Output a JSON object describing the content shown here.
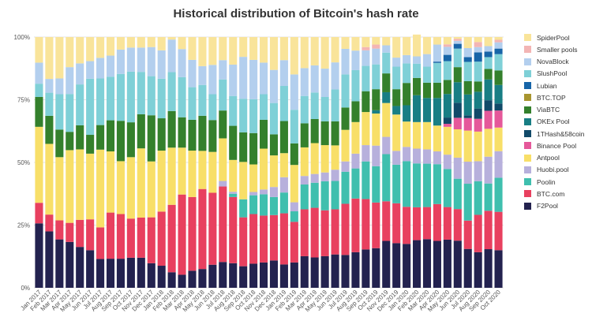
{
  "chart_data": {
    "type": "bar",
    "stacked": true,
    "title": "Historical distribution of Bitcoin's hash rate",
    "xlabel": "",
    "ylabel": "",
    "ylim": [
      0,
      100
    ],
    "y_ticks": [
      "0%",
      "25%",
      "50%",
      "75%",
      "100%"
    ],
    "grid": true,
    "legend_position": "right",
    "categories": [
      "Jan 2017",
      "Feb 2017",
      "Mar 2017",
      "Apr 2017",
      "May 2017",
      "Jun 2017",
      "Jul 2017",
      "Aug 2017",
      "Sep 2017",
      "Oct 2017",
      "Nov 2017",
      "Dec 2017",
      "Jan 2018",
      "Feb 2018",
      "Mar 2018",
      "Apr 2018",
      "May 2018",
      "Jun 2018",
      "Jul 2018",
      "Aug 2018",
      "Sep 2018",
      "Oct 2018",
      "Nov 2018",
      "Dec 2018",
      "Jan 2019",
      "Feb 2019",
      "Mar 2019",
      "Apr 2019",
      "May 2019",
      "Jun 2019",
      "Jul 2019",
      "Aug 2019",
      "Sep 2019",
      "Oct 2019",
      "Nov 2019",
      "Dec 2019",
      "Jan 2020",
      "Feb 2020",
      "Mar 2020",
      "Apr 2020",
      "May 2020",
      "Jun 2020",
      "Jul 2020",
      "Aug 2020",
      "Sep 2020",
      "Oct 2020"
    ],
    "bar_groups": [
      {
        "period": "Jan 2017",
        "values": [
          25.7,
          8.2,
          0,
          0,
          30.3,
          0,
          0,
          0,
          11.9,
          0,
          5.3,
          0,
          8.4,
          0,
          10.2
        ]
      },
      {
        "period": "Feb 2017",
        "values": [
          22.5,
          6.7,
          0,
          0,
          28.2,
          0,
          0,
          0,
          11.2,
          0,
          9.2,
          0,
          5.5,
          0,
          16.7
        ]
      },
      {
        "period": "Mar 2017",
        "values": [
          19.3,
          7.6,
          0,
          0,
          25.2,
          0,
          0,
          0,
          11.0,
          0,
          14.1,
          0,
          6.3,
          0,
          16.5
        ]
      },
      {
        "period": "Apr 2017",
        "values": [
          18.3,
          7.6,
          0,
          0,
          29.0,
          0,
          0,
          0,
          7.3,
          0,
          15.1,
          0,
          10.7,
          0,
          12.0
        ]
      },
      {
        "period": "May 2017",
        "values": [
          16.3,
          10.8,
          0,
          0,
          28.1,
          0,
          0,
          0,
          9.6,
          0,
          16.3,
          0,
          8.4,
          0,
          10.5
        ]
      },
      {
        "period": "Jun 2017",
        "values": [
          15.0,
          12.3,
          0,
          0,
          26.2,
          0,
          0,
          0,
          7.5,
          0,
          22.4,
          0,
          7.0,
          0,
          9.6
        ]
      },
      {
        "period": "Jul 2017",
        "values": [
          11.5,
          12.6,
          0,
          0,
          31.0,
          0,
          0,
          0,
          9.8,
          0,
          18.6,
          0,
          8.2,
          0,
          8.3
        ]
      },
      {
        "period": "Aug 2017",
        "values": [
          11.6,
          18.4,
          0,
          0,
          24.4,
          0,
          0,
          0,
          12.4,
          0,
          17.4,
          0,
          8.4,
          0,
          7.4
        ]
      },
      {
        "period": "Sep 2017",
        "values": [
          11.6,
          17.8,
          0,
          0,
          21.1,
          0,
          0,
          0,
          16.1,
          0,
          18.7,
          0,
          9.7,
          0,
          5.0
        ]
      },
      {
        "period": "Oct 2017",
        "values": [
          12.0,
          15.6,
          0,
          0,
          24.5,
          0,
          0,
          0,
          13.9,
          0,
          20.2,
          0,
          9.6,
          0,
          4.2
        ]
      },
      {
        "period": "Nov 2017",
        "values": [
          12.0,
          16.0,
          0,
          0,
          27.6,
          0,
          0,
          0,
          13.6,
          0,
          16.9,
          0,
          9.7,
          0,
          4.2
        ]
      },
      {
        "period": "Dec 2017",
        "values": [
          9.8,
          18.3,
          0,
          0,
          22.3,
          0,
          0,
          0,
          18.4,
          0,
          15.6,
          0,
          11.6,
          0,
          4.0
        ]
      },
      {
        "period": "Jan 2018",
        "values": [
          8.8,
          21.6,
          0,
          0,
          24.3,
          0,
          0,
          0,
          12.9,
          0,
          15.8,
          0,
          11.3,
          0,
          5.3
        ]
      },
      {
        "period": "Feb 2018",
        "values": [
          6.2,
          26.9,
          0,
          0,
          22.8,
          0,
          0,
          0,
          14.6,
          0,
          15.5,
          0,
          13.0,
          0,
          1.0
        ]
      },
      {
        "period": "Mar 2018",
        "values": [
          5.2,
          32.0,
          0,
          0,
          18.7,
          0,
          0,
          0,
          12.1,
          0,
          16.0,
          0,
          11.2,
          0,
          4.8
        ]
      },
      {
        "period": "Apr 2018",
        "values": [
          6.8,
          29.4,
          0,
          0,
          18.5,
          0,
          0,
          0,
          12.3,
          0,
          13.0,
          0,
          10.9,
          0,
          9.1
        ]
      },
      {
        "period": "May 2018",
        "values": [
          7.5,
          31.9,
          0,
          0,
          15.2,
          0,
          0,
          0,
          14.0,
          0,
          12.3,
          0,
          7.5,
          0,
          11.6
        ]
      },
      {
        "period": "Jun 2018",
        "values": [
          9.2,
          28.7,
          0,
          0,
          16.3,
          0,
          0,
          0,
          12.7,
          0,
          10.3,
          0,
          11.7,
          0,
          11.1
        ]
      },
      {
        "period": "Jul 2018",
        "values": [
          10.3,
          30.1,
          0,
          2.2,
          17.0,
          0,
          0,
          0,
          11.1,
          0,
          12.4,
          0,
          7.7,
          0,
          9.2
        ]
      },
      {
        "period": "Aug 2018",
        "values": [
          9.8,
          26.4,
          1.3,
          0.8,
          12.7,
          0,
          0,
          0,
          13.6,
          0,
          11.9,
          0,
          12.5,
          0,
          11.0
        ]
      },
      {
        "period": "Sep 2018",
        "values": [
          8.6,
          19.5,
          7.2,
          0,
          14.9,
          0,
          0,
          0,
          11.8,
          0,
          13.4,
          0,
          16.7,
          0,
          7.9
        ]
      },
      {
        "period": "Oct 2018",
        "values": [
          9.6,
          19.8,
          7.5,
          1.3,
          11.0,
          0,
          0,
          0,
          12.5,
          0,
          13.5,
          0,
          15.7,
          0,
          9.1
        ]
      },
      {
        "period": "Nov 2018",
        "values": [
          10.1,
          18.7,
          8.5,
          1.9,
          16.3,
          0,
          0,
          0,
          11.5,
          0,
          10.2,
          0,
          12.6,
          0,
          10.2
        ]
      },
      {
        "period": "Dec 2018",
        "values": [
          10.9,
          18.1,
          7.2,
          4.0,
          12.6,
          0,
          0,
          0,
          8.4,
          0,
          12.5,
          0,
          13.2,
          0,
          13.1
        ]
      },
      {
        "period": "Jan 2019",
        "values": [
          9.3,
          20.4,
          8.3,
          6.1,
          9.6,
          0,
          0,
          0,
          12.8,
          0,
          14.0,
          0,
          10.3,
          0,
          9.2
        ]
      },
      {
        "period": "Feb 2019",
        "values": [
          10.1,
          16.2,
          4.2,
          3.6,
          14.9,
          0,
          0,
          0,
          8.6,
          0,
          13.4,
          0,
          14.1,
          0,
          14.9
        ]
      },
      {
        "period": "Mar 2019",
        "values": [
          12.6,
          18.7,
          9.9,
          3.4,
          11.4,
          0,
          0,
          0,
          9.6,
          0,
          10.9,
          0,
          11.1,
          0,
          12.4
        ]
      },
      {
        "period": "Apr 2019",
        "values": [
          12.1,
          19.8,
          10.0,
          3.5,
          12.3,
          0,
          0,
          0,
          9.6,
          0,
          10.6,
          0,
          10.8,
          0,
          11.3
        ]
      },
      {
        "period": "May 2019",
        "values": [
          12.6,
          18.3,
          11.6,
          3.5,
          10.9,
          0,
          0,
          0,
          9.5,
          0,
          9.7,
          0,
          11.3,
          0,
          12.6
        ]
      },
      {
        "period": "Jun 2019",
        "values": [
          13.3,
          18.0,
          11.3,
          4.5,
          9.7,
          0,
          0,
          0,
          9.6,
          0,
          12.7,
          0,
          10.8,
          0,
          10.1
        ]
      },
      {
        "period": "Jul 2019",
        "values": [
          13.1,
          20.4,
          12.8,
          4.1,
          12.6,
          0,
          0,
          0,
          8.9,
          0,
          13.2,
          0,
          10.2,
          0,
          4.7
        ]
      },
      {
        "period": "Aug 2019",
        "values": [
          14.2,
          21.4,
          12.0,
          5.9,
          12.6,
          0,
          0,
          0,
          8.3,
          0,
          12.4,
          0,
          7.8,
          0,
          5.4
        ]
      },
      {
        "period": "Sep 2019",
        "values": [
          15.3,
          20.1,
          15.0,
          6.5,
          13.2,
          0,
          0,
          0,
          8.3,
          0,
          10.1,
          0,
          6.2,
          1.3,
          4.0
        ]
      },
      {
        "period": "Oct 2019",
        "values": [
          15.8,
          18.2,
          14.5,
          8.2,
          12.8,
          0,
          0,
          1.3,
          8.4,
          0,
          9.9,
          0,
          6.3,
          1.6,
          3.0
        ]
      },
      {
        "period": "Nov 2019",
        "values": [
          18.7,
          15.8,
          18.8,
          6.9,
          13.5,
          0,
          0,
          4.3,
          7.5,
          0,
          8.3,
          0,
          2.9,
          0,
          3.3
        ]
      },
      {
        "period": "Dec 2019",
        "values": [
          17.8,
          15.9,
          15.4,
          5.5,
          14.5,
          0,
          0,
          3.4,
          6.7,
          0,
          9.0,
          0,
          3.6,
          0,
          8.2
        ]
      },
      {
        "period": "Jan 2020",
        "values": [
          17.5,
          14.8,
          18.2,
          5.7,
          10.1,
          0,
          0,
          6.5,
          8.9,
          0,
          7.8,
          0,
          3.3,
          0,
          7.2
        ]
      },
      {
        "period": "Feb 2020",
        "values": [
          19.0,
          13.1,
          17.5,
          5.9,
          10.6,
          0,
          0,
          10.7,
          6.9,
          0,
          5.7,
          0,
          2.9,
          0,
          8.7
        ]
      },
      {
        "period": "Mar 2020",
        "values": [
          19.4,
          12.8,
          17.3,
          5.7,
          10.9,
          0,
          0,
          9.6,
          6.1,
          0,
          6.4,
          0,
          5.0,
          0,
          6.8
        ]
      },
      {
        "period": "Apr 2020",
        "values": [
          18.7,
          14.7,
          15.9,
          5.1,
          10.3,
          0,
          0,
          11.0,
          6.1,
          0,
          7.9,
          0.5,
          6.8,
          0,
          3.0
        ]
      },
      {
        "period": "May 2020",
        "values": [
          19.2,
          13.0,
          15.2,
          5.7,
          11.1,
          1.2,
          2.5,
          9.4,
          5.6,
          0,
          7.5,
          2.5,
          3.2,
          1.0,
          2.9
        ]
      },
      {
        "period": "Jun 2020",
        "values": [
          18.8,
          12.6,
          12.1,
          8.4,
          11.3,
          4.6,
          6.0,
          8.2,
          6.0,
          0,
          7.4,
          1.9,
          1.2,
          0.8,
          0.7
        ]
      },
      {
        "period": "Jul 2020",
        "values": [
          15.5,
          11.3,
          14.7,
          8.8,
          12.4,
          5.0,
          1.1,
          8.3,
          5.3,
          0,
          7.7,
          1.9,
          3.6,
          0,
          4.4
        ]
      },
      {
        "period": "Aug 2020",
        "values": [
          14.2,
          14.9,
          13.4,
          8.0,
          11.8,
          5.1,
          4.1,
          6.7,
          4.1,
          0,
          7.9,
          3.7,
          2.1,
          2.0,
          2.0
        ]
      },
      {
        "period": "Sep 2020",
        "values": [
          15.4,
          15.3,
          10.9,
          10.7,
          11.1,
          7.2,
          4.2,
          8.3,
          4.2,
          0,
          4.7,
          2.2,
          2.2,
          0,
          3.6
        ]
      },
      {
        "period": "Oct 2020",
        "values": [
          15.0,
          15.3,
          13.6,
          10.6,
          9.4,
          6.8,
          2.8,
          7.4,
          5.8,
          0,
          6.5,
          2.2,
          2.5,
          1.0,
          1.1
        ]
      }
    ],
    "series": [
      {
        "name": "F2Pool",
        "color": "#23224f"
      },
      {
        "name": "BTC.com",
        "color": "#e8405f"
      },
      {
        "name": "Poolin",
        "color": "#3fbfae"
      },
      {
        "name": "Huobi.pool",
        "color": "#b7b0dc"
      },
      {
        "name": "Antpool",
        "color": "#f8df68"
      },
      {
        "name": "Binance Pool",
        "color": "#e5589a"
      },
      {
        "name": "1THash&58coin",
        "color": "#114a69"
      },
      {
        "name": "OKEx Pool",
        "color": "#187e84"
      },
      {
        "name": "ViaBTC",
        "color": "#34802c"
      },
      {
        "name": "BTC.TOP",
        "color": "#a8952f"
      },
      {
        "name": "Lubian",
        "color": "#1765a8"
      },
      {
        "name": "SlushPool",
        "color": "#7fd0d7"
      },
      {
        "name": "NovaBlock",
        "color": "#b3cfee"
      },
      {
        "name": "Smaller pools",
        "color": "#f3b5b4"
      },
      {
        "name": "SpiderPool",
        "color": "#f9e49a"
      }
    ],
    "stack_order": [
      "F2Pool",
      "BTC.com",
      "Poolin",
      "Huobi.pool",
      "Antpool",
      "Binance Pool",
      "1THash&58coin",
      "OKEx Pool",
      "ViaBTC",
      "BTC.TOP",
      "SlushPool",
      "Lubian",
      "NovaBlock",
      "Smaller pools",
      "SpiderPool"
    ],
    "value_order_note_source": "values per period follow stack_order"
  }
}
